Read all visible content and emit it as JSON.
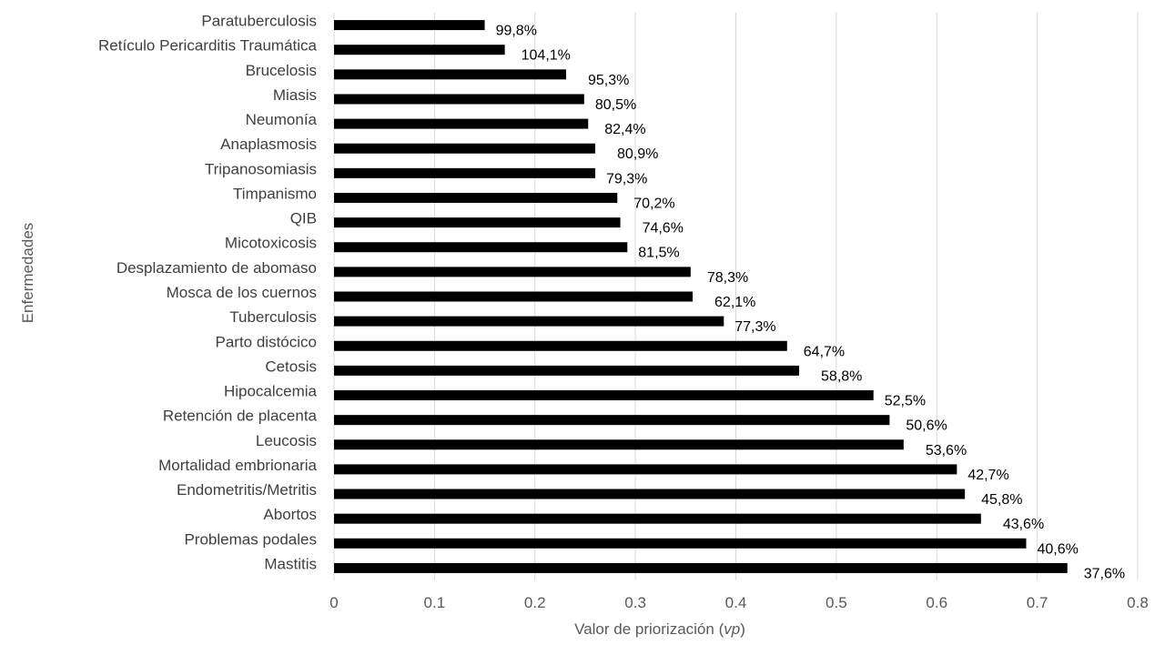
{
  "chart_data": {
    "type": "bar",
    "orientation": "horizontal",
    "title": "",
    "xlabel": "Valor de priorización",
    "xlabel_italic": "vp",
    "ylabel": "Enfermedades",
    "xlim": [
      0,
      0.8
    ],
    "xticks": [
      "0",
      "0.1",
      "0.2",
      "0.3",
      "0.4",
      "0.5",
      "0.6",
      "0.7",
      "0.8"
    ],
    "grid": "vertical",
    "bar_color": "#000000",
    "categories": [
      "Paratuberculosis",
      "Retículo Pericarditis Traumática",
      "Brucelosis",
      "Miasis",
      "Neumonía",
      "Anaplasmosis",
      "Tripanosomiasis",
      "Timpanismo",
      "QIB",
      "Micotoxicosis",
      "Desplazamiento de abomaso",
      "Mosca de los cuernos",
      "Tuberculosis",
      "Parto distócico",
      "Cetosis",
      "Hipocalcemia",
      "Retención de placenta",
      "Leucosis",
      "Mortalidad embrionaria",
      "Endometritis/Metritis",
      "Abortos",
      "Problemas podales",
      "Mastitis"
    ],
    "values": [
      0.15,
      0.17,
      0.231,
      0.249,
      0.253,
      0.26,
      0.26,
      0.282,
      0.285,
      0.292,
      0.355,
      0.357,
      0.388,
      0.451,
      0.463,
      0.537,
      0.553,
      0.567,
      0.62,
      0.628,
      0.644,
      0.689,
      0.73
    ],
    "data_labels": [
      "99,8%",
      "104,1%",
      "95,3%",
      "80,5%",
      "82,4%",
      "80,9%",
      "79,3%",
      "70,2%",
      "74,6%",
      "81,5%",
      "78,3%",
      "62,1%",
      "77,3%",
      "64,7%",
      "58,8%",
      "52,5%",
      "50,6%",
      "53,6%",
      "42,7%",
      "45,8%",
      "43,6%",
      "40,6%",
      "37,6%"
    ]
  }
}
